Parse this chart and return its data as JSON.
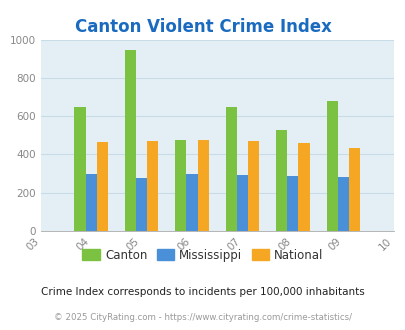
{
  "title": "Canton Violent Crime Index",
  "all_years": [
    2003,
    2004,
    2005,
    2006,
    2007,
    2008,
    2009,
    2010
  ],
  "data_years": [
    2004,
    2005,
    2006,
    2007,
    2008,
    2009
  ],
  "canton": [
    650,
    945,
    478,
    648,
    530,
    678
  ],
  "mississippi": [
    300,
    278,
    300,
    290,
    285,
    283
  ],
  "national": [
    465,
    468,
    478,
    468,
    458,
    432
  ],
  "canton_color": "#7bc242",
  "mississippi_color": "#4a90d9",
  "national_color": "#f5a623",
  "bg_color": "#e4eff5",
  "title_color": "#1a6bbf",
  "ylim": [
    0,
    1000
  ],
  "yticks": [
    0,
    200,
    400,
    600,
    800,
    1000
  ],
  "bar_width": 0.22,
  "subtitle": "Crime Index corresponds to incidents per 100,000 inhabitants",
  "footer": "© 2025 CityRating.com - https://www.cityrating.com/crime-statistics/",
  "legend_labels": [
    "Canton",
    "Mississippi",
    "National"
  ]
}
